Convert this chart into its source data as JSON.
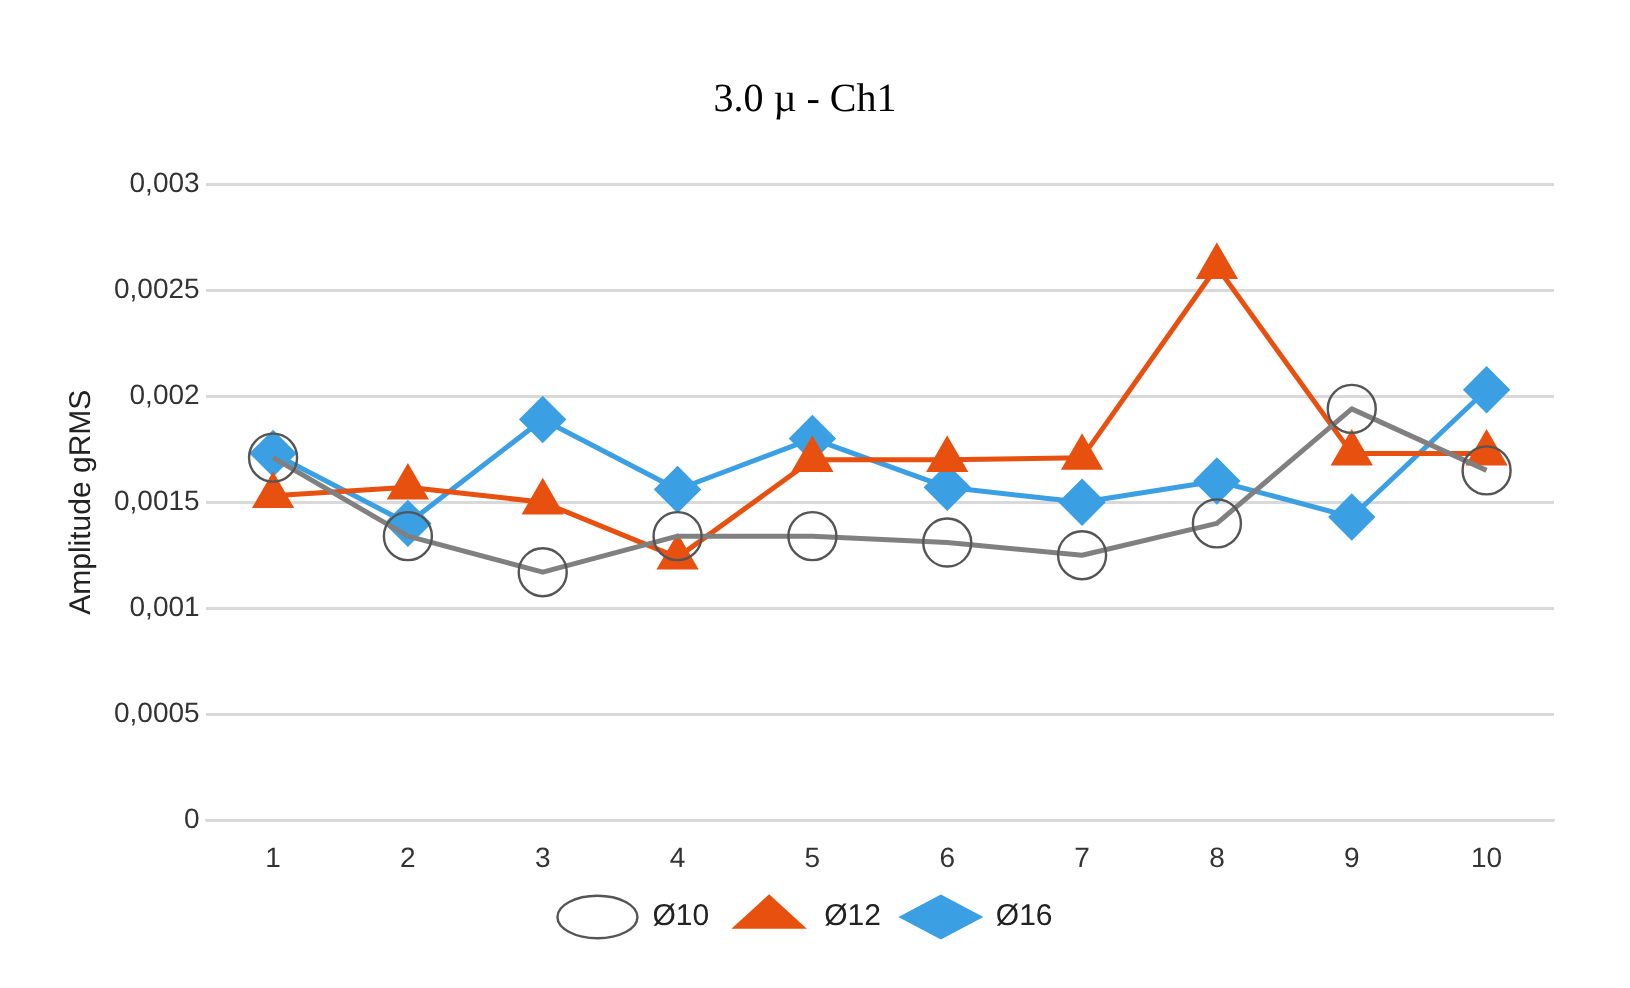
{
  "chart_data": {
    "type": "line",
    "title": "3.0 µ - Ch1",
    "ylabel": "Amplitude gRMS",
    "categories": [
      "1",
      "2",
      "3",
      "4",
      "5",
      "6",
      "7",
      "8",
      "9",
      "10"
    ],
    "series": [
      {
        "name": "Ø10",
        "color": "#808080",
        "marker": "circle",
        "values": [
          0.00171,
          0.00134,
          0.00117,
          0.00134,
          0.00134,
          0.00131,
          0.00125,
          0.0014,
          0.00194,
          0.00165
        ]
      },
      {
        "name": "Ø12",
        "color": "#e8500f",
        "marker": "triangle",
        "values": [
          0.00153,
          0.00157,
          0.0015,
          0.00124,
          0.0017,
          0.0017,
          0.00171,
          0.00261,
          0.00173,
          0.00173
        ]
      },
      {
        "name": "Ø16",
        "color": "#3b9fe3",
        "marker": "diamond",
        "values": [
          0.00173,
          0.0014,
          0.00189,
          0.00156,
          0.0018,
          0.00157,
          0.0015,
          0.0016,
          0.00143,
          0.00203
        ]
      }
    ],
    "ylim": [
      0,
      0.003
    ],
    "yticks": [
      {
        "value": 0,
        "label": "0"
      },
      {
        "value": 0.0005,
        "label": "0,0005"
      },
      {
        "value": 0.001,
        "label": "0,001"
      },
      {
        "value": 0.0015,
        "label": "0,0015"
      },
      {
        "value": 0.002,
        "label": "0,002"
      },
      {
        "value": 0.0025,
        "label": "0,0025"
      },
      {
        "value": 0.003,
        "label": "0,003"
      }
    ],
    "grid": "y",
    "legend": "bottom"
  }
}
